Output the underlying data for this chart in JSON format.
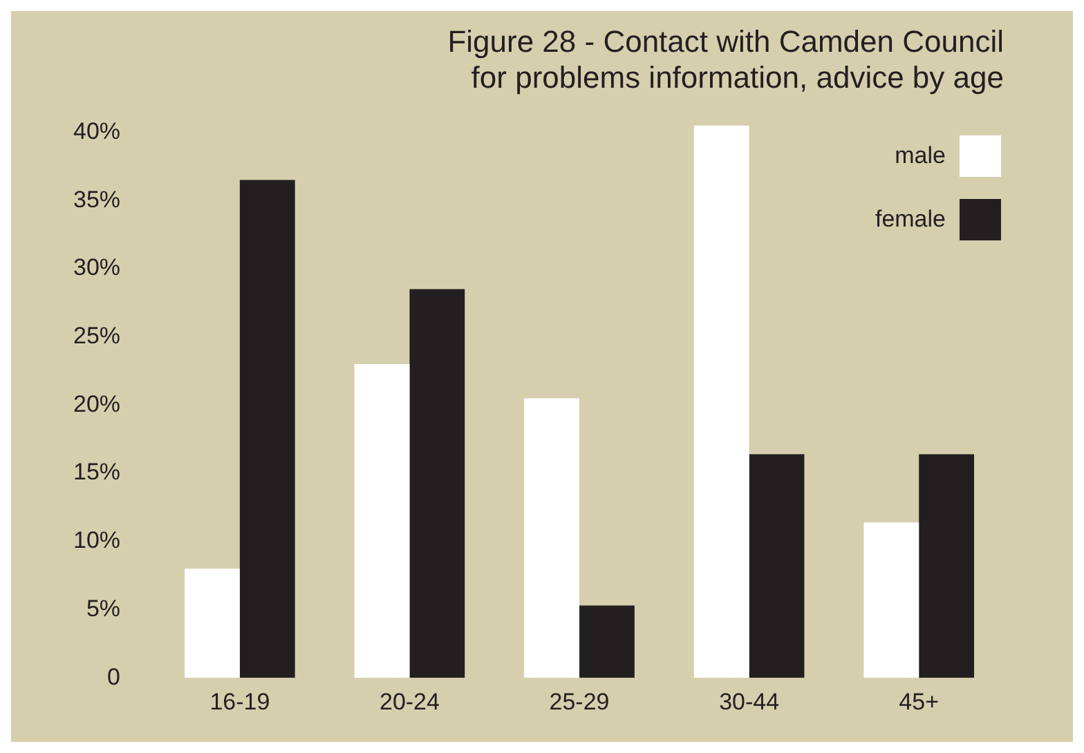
{
  "chart_data": {
    "type": "bar",
    "title": [
      "Figure 28 - Contact with Camden Council",
      "for problems information, advice by age"
    ],
    "categories": [
      "16-19",
      "20-24",
      "25-29",
      "30-44",
      "45+"
    ],
    "series": [
      {
        "name": "male",
        "color": "#ffffff",
        "values": [
          8.0,
          23.0,
          20.5,
          40.5,
          11.4
        ]
      },
      {
        "name": "female",
        "color": "#231f20",
        "values": [
          36.5,
          28.5,
          5.3,
          16.4,
          16.4
        ]
      }
    ],
    "ylim": [
      0,
      40.5
    ],
    "yticks": [
      0,
      {
        "value": 5,
        "label": "5%"
      },
      {
        "value": 10,
        "label": "10%"
      },
      {
        "value": 15,
        "label": "15%"
      },
      {
        "value": 20,
        "label": "20%"
      },
      {
        "value": 25,
        "label": "25%"
      },
      {
        "value": 30,
        "label": "30%"
      },
      {
        "value": 35,
        "label": "35%"
      },
      {
        "value": 40,
        "label": "40%"
      }
    ],
    "grid": false,
    "legend": "top right"
  }
}
